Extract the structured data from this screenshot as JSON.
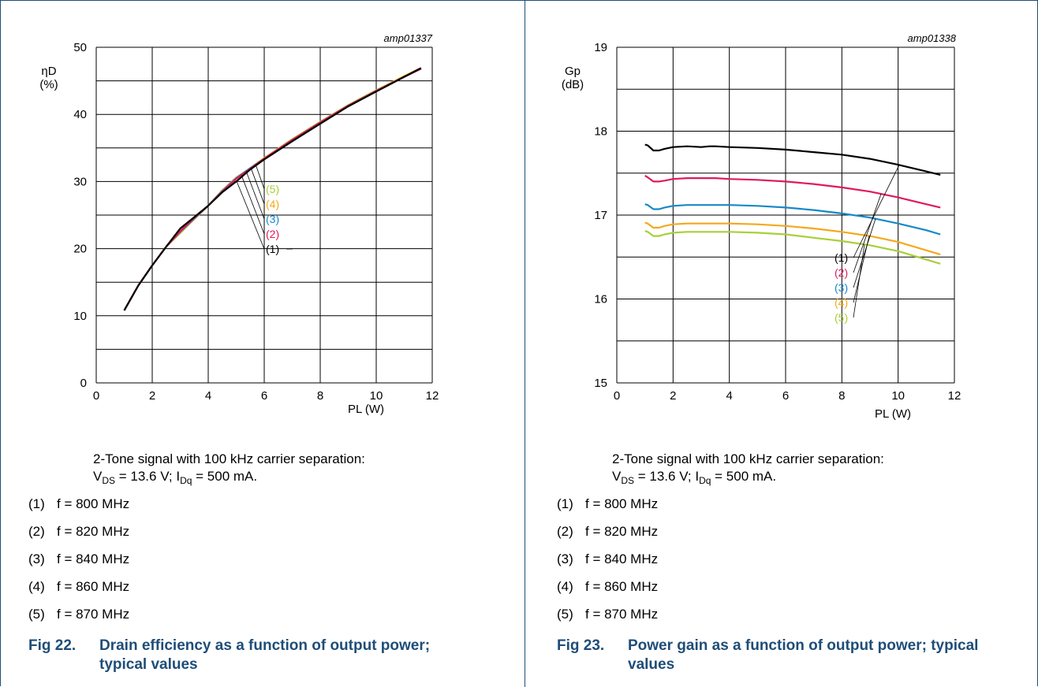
{
  "colors": {
    "brand": "#1f4d78",
    "series": [
      "#000000",
      "#e0195b",
      "#1788c8",
      "#f5a81b",
      "#a9cf38"
    ]
  },
  "panels": [
    {
      "id_text": "amp01337",
      "ylabel_line1": "ηD",
      "ylabel_line2": "(%)",
      "xlabel": "PL (W)",
      "caption_line1": "2-Tone signal with 100 kHz carrier separation:",
      "caption_line2_a": "V",
      "caption_line2_sub1": "DS",
      "caption_line2_b": " = 13.6 V; I",
      "caption_line2_sub2": "Dq",
      "caption_line2_c": " = 500 mA.",
      "legend": [
        {
          "num": "(1)",
          "text": "f = 800 MHz"
        },
        {
          "num": "(2)",
          "text": "f = 820 MHz"
        },
        {
          "num": "(3)",
          "text": "f = 840 MHz"
        },
        {
          "num": "(4)",
          "text": "f = 860 MHz"
        },
        {
          "num": "(5)",
          "text": "f = 870 MHz"
        }
      ],
      "fig_no": "Fig 22.",
      "fig_title": "Drain efficiency as a function of output power; typical values"
    },
    {
      "id_text": "amp01338",
      "ylabel_line1": "Gp",
      "ylabel_line2": "(dB)",
      "xlabel": "PL (W)",
      "caption_line1": "2-Tone signal with 100 kHz carrier separation:",
      "caption_line2_a": "V",
      "caption_line2_sub1": "DS",
      "caption_line2_b": " = 13.6 V; I",
      "caption_line2_sub2": "Dq",
      "caption_line2_c": " = 500 mA.",
      "legend": [
        {
          "num": "(1)",
          "text": "f = 800 MHz"
        },
        {
          "num": "(2)",
          "text": "f = 820 MHz"
        },
        {
          "num": "(3)",
          "text": "f = 840 MHz"
        },
        {
          "num": "(4)",
          "text": "f = 860 MHz"
        },
        {
          "num": "(5)",
          "text": "f = 870 MHz"
        }
      ],
      "fig_no": "Fig 23.",
      "fig_title": "Power gain as a function of output power; typical values"
    }
  ],
  "chart_data": [
    {
      "type": "line",
      "title": "",
      "xlabel": "PL (W)",
      "ylabel": "ηD (%)",
      "xlim": [
        0,
        12
      ],
      "ylim": [
        0,
        50
      ],
      "xticks": [
        0,
        2,
        4,
        6,
        8,
        10,
        12
      ],
      "yticks": [
        0,
        10,
        20,
        30,
        40,
        50
      ],
      "grid": true,
      "series": [
        {
          "name": "(1)",
          "x": [
            1,
            1.5,
            2,
            2.5,
            3,
            3.5,
            4,
            4.5,
            5,
            5.5,
            6,
            7,
            8,
            9,
            10,
            11,
            11.6
          ],
          "y": [
            10.8,
            14.5,
            17.5,
            20.3,
            23.0,
            24.7,
            26.4,
            28.4,
            30.0,
            31.8,
            33.3,
            36.0,
            38.6,
            41.2,
            43.4,
            45.6,
            46.9
          ]
        },
        {
          "name": "(2)",
          "x": [
            1,
            1.5,
            2,
            2.5,
            3,
            3.5,
            4,
            4.5,
            5,
            5.5,
            6,
            7,
            8,
            9,
            10,
            11,
            11.6
          ],
          "y": [
            10.8,
            14.5,
            17.5,
            20.3,
            22.6,
            24.6,
            26.4,
            28.5,
            30.4,
            31.9,
            33.4,
            36.2,
            38.8,
            41.3,
            43.5,
            45.6,
            46.8
          ]
        },
        {
          "name": "(3)",
          "x": [
            1,
            1.5,
            2,
            2.5,
            3,
            3.5,
            4,
            4.5,
            5,
            5.5,
            6,
            7,
            8,
            9,
            10,
            11,
            11.6
          ],
          "y": [
            10.8,
            14.5,
            17.5,
            20.3,
            22.5,
            24.5,
            26.4,
            28.6,
            30.5,
            32.0,
            33.4,
            36.2,
            38.8,
            41.3,
            43.5,
            45.6,
            46.8
          ]
        },
        {
          "name": "(4)",
          "x": [
            1,
            1.5,
            2,
            2.5,
            3,
            3.5,
            4,
            4.5,
            5,
            5.5,
            6,
            7,
            8,
            9,
            10,
            11,
            11.6
          ],
          "y": [
            10.8,
            14.5,
            17.5,
            20.3,
            22.4,
            24.4,
            26.4,
            28.7,
            30.6,
            32.0,
            33.5,
            36.2,
            38.8,
            41.3,
            43.5,
            45.7,
            46.9
          ]
        },
        {
          "name": "(5)",
          "x": [
            1,
            1.5,
            2,
            2.5,
            3,
            3.5,
            4,
            4.5,
            5,
            5.5,
            6,
            7,
            8,
            9,
            10,
            11,
            11.6
          ],
          "y": [
            10.8,
            14.5,
            17.5,
            20.3,
            22.3,
            24.4,
            26.4,
            28.6,
            30.5,
            32.0,
            33.5,
            36.3,
            38.9,
            41.4,
            43.6,
            45.7,
            46.9
          ]
        }
      ]
    },
    {
      "type": "line",
      "title": "",
      "xlabel": "PL (W)",
      "ylabel": "Gp (dB)",
      "xlim": [
        0,
        12
      ],
      "ylim": [
        15,
        19
      ],
      "xticks": [
        0,
        2,
        4,
        6,
        8,
        10,
        12
      ],
      "yticks": [
        15,
        16,
        17,
        18,
        19
      ],
      "grid": true,
      "series": [
        {
          "name": "(1)",
          "x": [
            1,
            1.1,
            1.3,
            1.5,
            1.7,
            2,
            2.5,
            3,
            3.3,
            3.5,
            4,
            5,
            6,
            7,
            8,
            9,
            10,
            11,
            11.5
          ],
          "y": [
            17.84,
            17.83,
            17.77,
            17.77,
            17.79,
            17.81,
            17.82,
            17.81,
            17.82,
            17.82,
            17.81,
            17.8,
            17.78,
            17.75,
            17.72,
            17.67,
            17.6,
            17.52,
            17.48
          ]
        },
        {
          "name": "(2)",
          "x": [
            1,
            1.1,
            1.3,
            1.5,
            1.7,
            2,
            2.5,
            3,
            3.5,
            4,
            5,
            6,
            7,
            8,
            9,
            10,
            11,
            11.5
          ],
          "y": [
            17.47,
            17.45,
            17.4,
            17.4,
            17.41,
            17.43,
            17.44,
            17.44,
            17.44,
            17.43,
            17.42,
            17.4,
            17.37,
            17.33,
            17.28,
            17.21,
            17.13,
            17.09
          ]
        },
        {
          "name": "(3)",
          "x": [
            1,
            1.1,
            1.3,
            1.5,
            1.7,
            2,
            2.5,
            3,
            3.5,
            4,
            5,
            6,
            7,
            8,
            9,
            10,
            11,
            11.5
          ],
          "y": [
            17.13,
            17.12,
            17.07,
            17.07,
            17.09,
            17.11,
            17.12,
            17.12,
            17.12,
            17.12,
            17.11,
            17.09,
            17.06,
            17.02,
            16.97,
            16.9,
            16.82,
            16.77
          ]
        },
        {
          "name": "(4)",
          "x": [
            1,
            1.1,
            1.3,
            1.5,
            1.7,
            2,
            2.5,
            3,
            3.5,
            4,
            5,
            6,
            7,
            8,
            9,
            10,
            11,
            11.5
          ],
          "y": [
            16.91,
            16.9,
            16.85,
            16.85,
            16.87,
            16.89,
            16.9,
            16.9,
            16.9,
            16.9,
            16.89,
            16.87,
            16.84,
            16.8,
            16.75,
            16.68,
            16.58,
            16.53
          ]
        },
        {
          "name": "(5)",
          "x": [
            1,
            1.1,
            1.3,
            1.5,
            1.7,
            2,
            2.5,
            3,
            3.5,
            4,
            5,
            6,
            7,
            8,
            9,
            10,
            11,
            11.5
          ],
          "y": [
            16.81,
            16.8,
            16.75,
            16.75,
            16.77,
            16.79,
            16.8,
            16.8,
            16.8,
            16.8,
            16.79,
            16.77,
            16.73,
            16.69,
            16.64,
            16.57,
            16.47,
            16.42
          ]
        }
      ]
    }
  ]
}
